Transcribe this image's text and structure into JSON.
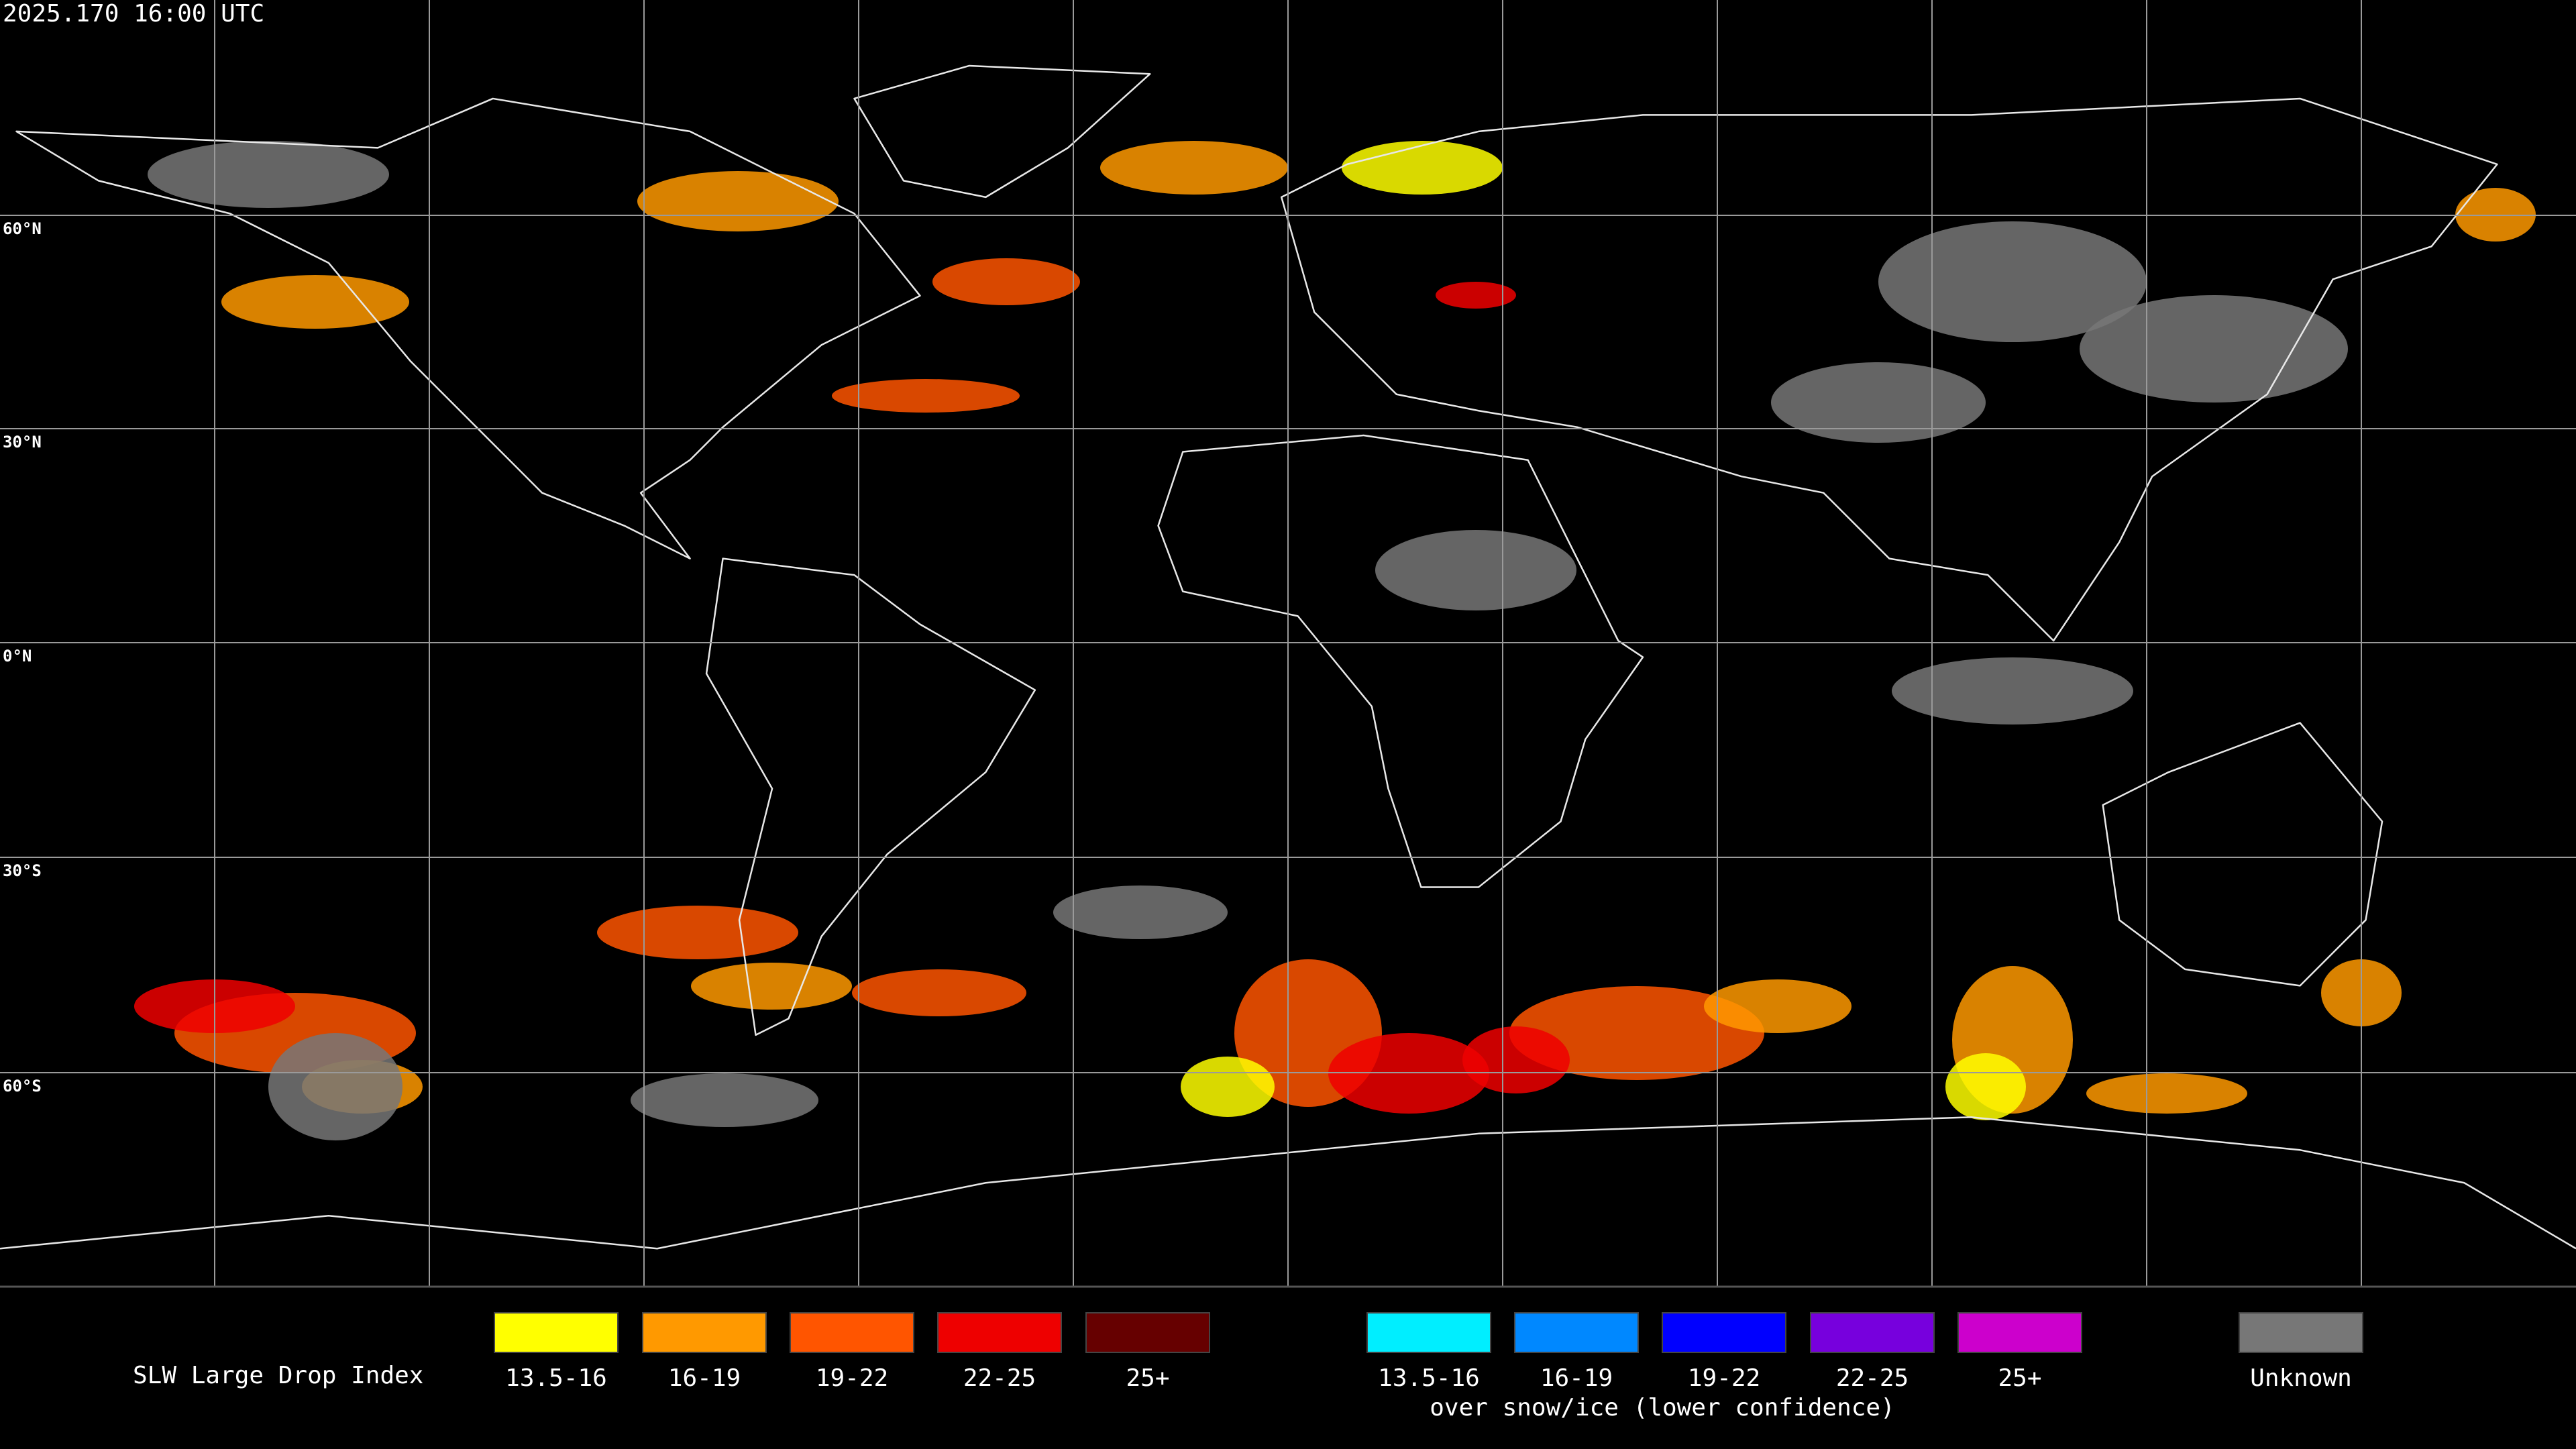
{
  "header": {
    "timestamp": "2025.170 16:00 UTC"
  },
  "latitude_labels": [
    "60°N",
    "30°N",
    "0°N",
    "30°S",
    "60°S"
  ],
  "legend": {
    "title": "SLW Large Drop Index",
    "items": [
      {
        "label": "13.5-16",
        "color": "#ffff00"
      },
      {
        "label": "16-19",
        "color": "#ff9900"
      },
      {
        "label": "19-22",
        "color": "#ff5500"
      },
      {
        "label": "22-25",
        "color": "#ee0000"
      },
      {
        "label": "25+",
        "color": "#660000"
      }
    ],
    "snow_items": [
      {
        "label": "13.5-16",
        "color": "#00eeff"
      },
      {
        "label": "16-19",
        "color": "#0088ff"
      },
      {
        "label": "19-22",
        "color": "#0000ff"
      },
      {
        "label": "22-25",
        "color": "#7700dd"
      },
      {
        "label": "25+",
        "color": "#cc00cc"
      }
    ],
    "snow_note": "over snow/ice (lower confidence)",
    "unknown": {
      "label": "Unknown",
      "color": "#777777"
    }
  }
}
